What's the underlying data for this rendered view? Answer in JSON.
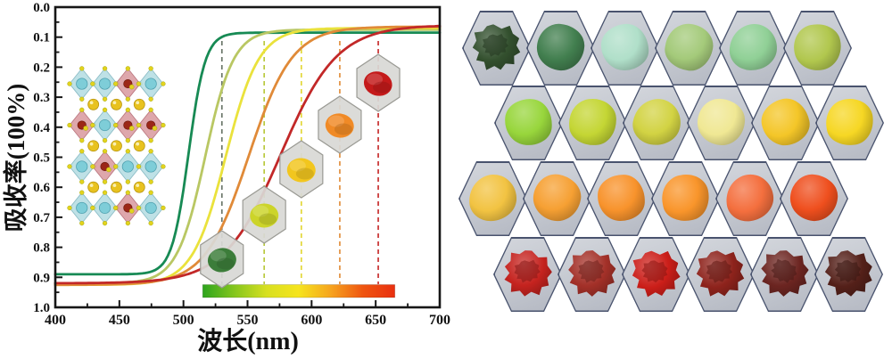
{
  "chart": {
    "x_ticks": [
      "400",
      "450",
      "500",
      "550",
      "600",
      "650",
      "700"
    ],
    "y_ticks": [
      "0.0",
      "0.1",
      "0.2",
      "0.3",
      "0.4",
      "0.5",
      "0.6",
      "0.7",
      "0.8",
      "0.9",
      "1.0"
    ]
  },
  "chart_data": {
    "type": "line",
    "title": "",
    "xlabel": "波长(nm)",
    "ylabel": "吸收率(100%)",
    "xlim": [
      400,
      700
    ],
    "ylim": [
      0.0,
      1.0
    ],
    "y_axis_inverted": true,
    "grid": false,
    "legend": "none",
    "series": [
      {
        "name": "green-sample",
        "color": "#178a54",
        "shape": "sigmoid",
        "midpoint_nm": 504,
        "width_nm": 6.5,
        "plateau_low_absorbance": 0.085,
        "plateau_high_absorbance": 0.89
      },
      {
        "name": "yellow-green-sample",
        "color": "#b9c763",
        "shape": "sigmoid",
        "midpoint_nm": 517,
        "width_nm": 11,
        "plateau_low_absorbance": 0.075,
        "plateau_high_absorbance": 0.92
      },
      {
        "name": "yellow-sample",
        "color": "#eae23c",
        "shape": "sigmoid",
        "midpoint_nm": 533,
        "width_nm": 13,
        "plateau_low_absorbance": 0.07,
        "plateau_high_absorbance": 0.925
      },
      {
        "name": "orange-sample",
        "color": "#e08a38",
        "shape": "sigmoid",
        "midpoint_nm": 551,
        "width_nm": 17,
        "plateau_low_absorbance": 0.065,
        "plateau_high_absorbance": 0.925
      },
      {
        "name": "red-sample",
        "color": "#c22828",
        "shape": "sigmoid",
        "midpoint_nm": 576,
        "width_nm": 22,
        "plateau_low_absorbance": 0.06,
        "plateau_high_absorbance": 0.92
      }
    ],
    "band_edge_markers": [
      {
        "nm": 530,
        "line_color": "#6a7569",
        "powder_color": "#3c7d3a"
      },
      {
        "nm": 563,
        "line_color": "#b9c93e",
        "powder_color": "#ccd42a"
      },
      {
        "nm": 592,
        "line_color": "#e3d83a",
        "powder_color": "#f2c61e"
      },
      {
        "nm": 622,
        "line_color": "#e29140",
        "powder_color": "#f08a26"
      },
      {
        "nm": 652,
        "line_color": "#c83030",
        "powder_color": "#c41a1a"
      }
    ],
    "gradient_bar": {
      "from_nm": 515,
      "to_nm": 665,
      "stops": [
        "#2da41e",
        "#86c61e",
        "#d8e020",
        "#f6e41e",
        "#f6a41e",
        "#ef5510",
        "#e93010"
      ]
    }
  },
  "inset": {
    "name": "perovskite-crystal-structure",
    "octahedron_colors": {
      "cyan": "#b5dde2",
      "pink": "#d99ba1"
    },
    "atom_colors": {
      "large_yellow": "#e8c21f",
      "small_yellow": "#e3d31d",
      "cyan": "#7ecdd8",
      "dark_red": "#9c2718"
    }
  },
  "powder_grid": {
    "rows": [
      {
        "colors": [
          "#33502e",
          "#427f4f",
          "#b0dfc9",
          "#a4ca7a",
          "#90d096",
          "#b1c74e"
        ],
        "texture": [
          "chunk",
          "pile",
          "pile",
          "pile",
          "pile",
          "pile"
        ]
      },
      {
        "colors": [
          "#98d63c",
          "#c4d634",
          "#d2d343",
          "#f0e894",
          "#f4c628",
          "#f6d724"
        ],
        "texture": [
          "pile",
          "pile",
          "pile",
          "pile",
          "pile",
          "pile"
        ]
      },
      {
        "colors": [
          "#f2c342",
          "#f6a033",
          "#f8932c",
          "#f9952b",
          "#f46f3e",
          "#ef4f1e"
        ],
        "texture": [
          "pile",
          "pile",
          "pile",
          "pile",
          "pile",
          "pile"
        ]
      },
      {
        "colors": [
          "#c5231f",
          "#a33028",
          "#cb1e19",
          "#8e231c",
          "#6c2521",
          "#542019"
        ],
        "texture": [
          "chunk",
          "chunk",
          "chunk",
          "chunk",
          "chunk",
          "chunk"
        ]
      }
    ]
  }
}
